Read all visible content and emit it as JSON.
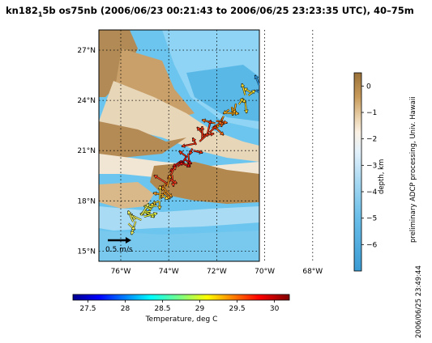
{
  "title": {
    "part1": "kn182",
    "sub": "1",
    "part2": "5b os75nb (2006/06/23 00:21:43 to 2006/06/25 23:23:35 UTC), 40–75m"
  },
  "map": {
    "lat_ticks": [
      "27°N",
      "24°N",
      "21°N",
      "18°N",
      "15°N"
    ],
    "lon_ticks": [
      "76°W",
      "74°W",
      "72°W",
      "70°W",
      "68°W"
    ],
    "lat_values": [
      27,
      24,
      21,
      18,
      15
    ],
    "lon_values": [
      -76,
      -74,
      -72,
      -70,
      -68
    ],
    "scale_label": "0.5 m/s",
    "grid": true
  },
  "depth_colorbar": {
    "ticks": [
      "0",
      "−1",
      "−2",
      "−3",
      "−4",
      "−5",
      "−6"
    ],
    "tick_values": [
      0,
      -1,
      -2,
      -3,
      -4,
      -5,
      -6
    ],
    "range": [
      -7,
      0.5
    ],
    "label": "depth, km"
  },
  "temp_colorbar": {
    "ticks": [
      "27.5",
      "28",
      "28.5",
      "29",
      "29.5",
      "30"
    ],
    "tick_values": [
      27.5,
      28,
      28.5,
      29,
      29.5,
      30
    ],
    "range": [
      27.3,
      30.2
    ],
    "label": "Temperature, deg C"
  },
  "credit": "preliminary ADCP processing,  Univ. Hawaii",
  "timestamp": "2006/06/25 23:49:44"
}
